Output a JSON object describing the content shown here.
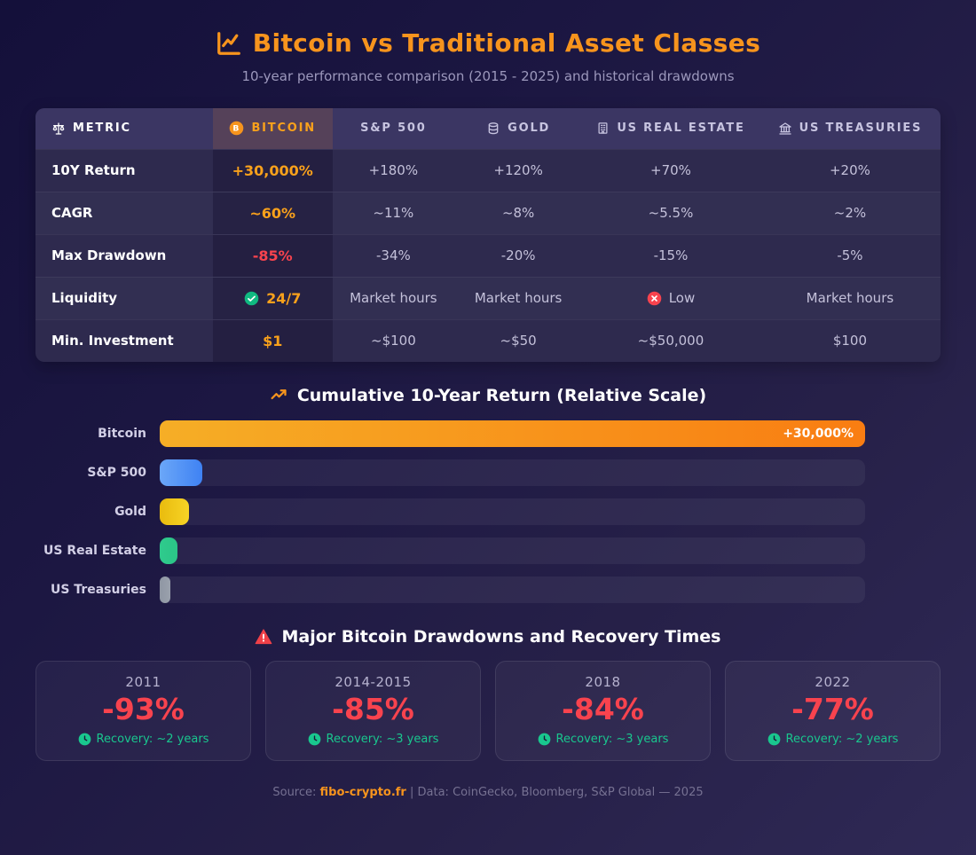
{
  "page": {
    "title": "Bitcoin vs Traditional Asset Classes",
    "subtitle": "10-year performance comparison (2015 - 2025) and historical drawdowns"
  },
  "colors": {
    "accent_orange": "#f7941d",
    "bitcoin_value_orange": "#f9a11b",
    "negative_red": "#f8434e",
    "recovery_green": "#19c78e",
    "check_green": "#10b981",
    "sp500_blue": "#4f8ef7",
    "gold_yellow": "#f2c811",
    "real_estate_teal": "#2fcb8d",
    "treasuries_gray": "#939aa8",
    "background_dark": "#14103a",
    "background_light": "#2f2955"
  },
  "table": {
    "headers": {
      "metric": "METRIC",
      "bitcoin": "BITCOIN",
      "sp500": "S&P 500",
      "gold": "GOLD",
      "real_estate": "US REAL ESTATE",
      "treasuries": "US TREASURIES"
    },
    "rows": [
      {
        "metric": "10Y Return",
        "bitcoin": "+30,000%",
        "sp500": "+180%",
        "gold": "+120%",
        "real_estate": "+70%",
        "treasuries": "+20%"
      },
      {
        "metric": "CAGR",
        "bitcoin": "~60%",
        "sp500": "~11%",
        "gold": "~8%",
        "real_estate": "~5.5%",
        "treasuries": "~2%"
      },
      {
        "metric": "Max Drawdown",
        "bitcoin": "-85%",
        "sp500": "-34%",
        "gold": "-20%",
        "real_estate": "-15%",
        "treasuries": "-5%"
      },
      {
        "metric": "Liquidity",
        "bitcoin": "24/7",
        "bitcoin_icon": "check-circle",
        "sp500": "Market hours",
        "gold": "Market hours",
        "real_estate": "Low",
        "real_estate_icon": "x-circle",
        "treasuries": "Market hours"
      },
      {
        "metric": "Min. Investment",
        "bitcoin": "$1",
        "sp500": "~$100",
        "gold": "~$50",
        "real_estate": "~$50,000",
        "treasuries": "$100"
      }
    ]
  },
  "chart_data": {
    "type": "bar",
    "orientation": "horizontal",
    "title": "Cumulative 10-Year Return (Relative Scale)",
    "categories": [
      "Bitcoin",
      "S&P 500",
      "Gold",
      "US Real Estate",
      "US Treasuries"
    ],
    "values_10y_return_pct": [
      30000,
      180,
      120,
      70,
      20
    ],
    "scale_note": "relative bar widths, not linear",
    "series": [
      {
        "name": "Bitcoin",
        "value_label": "+30,000%",
        "width_pct": 100,
        "color_from": "#f6ae26",
        "color_to": "#f97d12"
      },
      {
        "name": "S&P 500",
        "value_label": "+180%",
        "width_pct": 6,
        "color_from": "#6ba7f8",
        "color_to": "#3f82f3"
      },
      {
        "name": "Gold",
        "value_label": "+120%",
        "width_pct": 4.2,
        "color_from": "#e9bb0e",
        "color_to": "#f7d426"
      },
      {
        "name": "US Real Estate",
        "value_label": "+70%",
        "width_pct": 2.5,
        "color_from": "#2fcb8d",
        "color_to": "#2bc487"
      },
      {
        "name": "US Treasuries",
        "value_label": "+20%",
        "width_pct": 1.5,
        "color_from": "#8f96a3",
        "color_to": "#9aa1ad"
      }
    ]
  },
  "drawdowns": {
    "title": "Major Bitcoin Drawdowns and Recovery Times",
    "cards": [
      {
        "period": "2011",
        "drawdown": "-93%",
        "recovery": "Recovery: ~2 years"
      },
      {
        "period": "2014-2015",
        "drawdown": "-85%",
        "recovery": "Recovery: ~3 years"
      },
      {
        "period": "2018",
        "drawdown": "-84%",
        "recovery": "Recovery: ~3 years"
      },
      {
        "period": "2022",
        "drawdown": "-77%",
        "recovery": "Recovery: ~2 years"
      }
    ]
  },
  "footer": {
    "source_label": "Source:",
    "source_link": "fibo-crypto.fr",
    "data_note": "| Data: CoinGecko, Bloomberg, S&P Global — 2025"
  }
}
